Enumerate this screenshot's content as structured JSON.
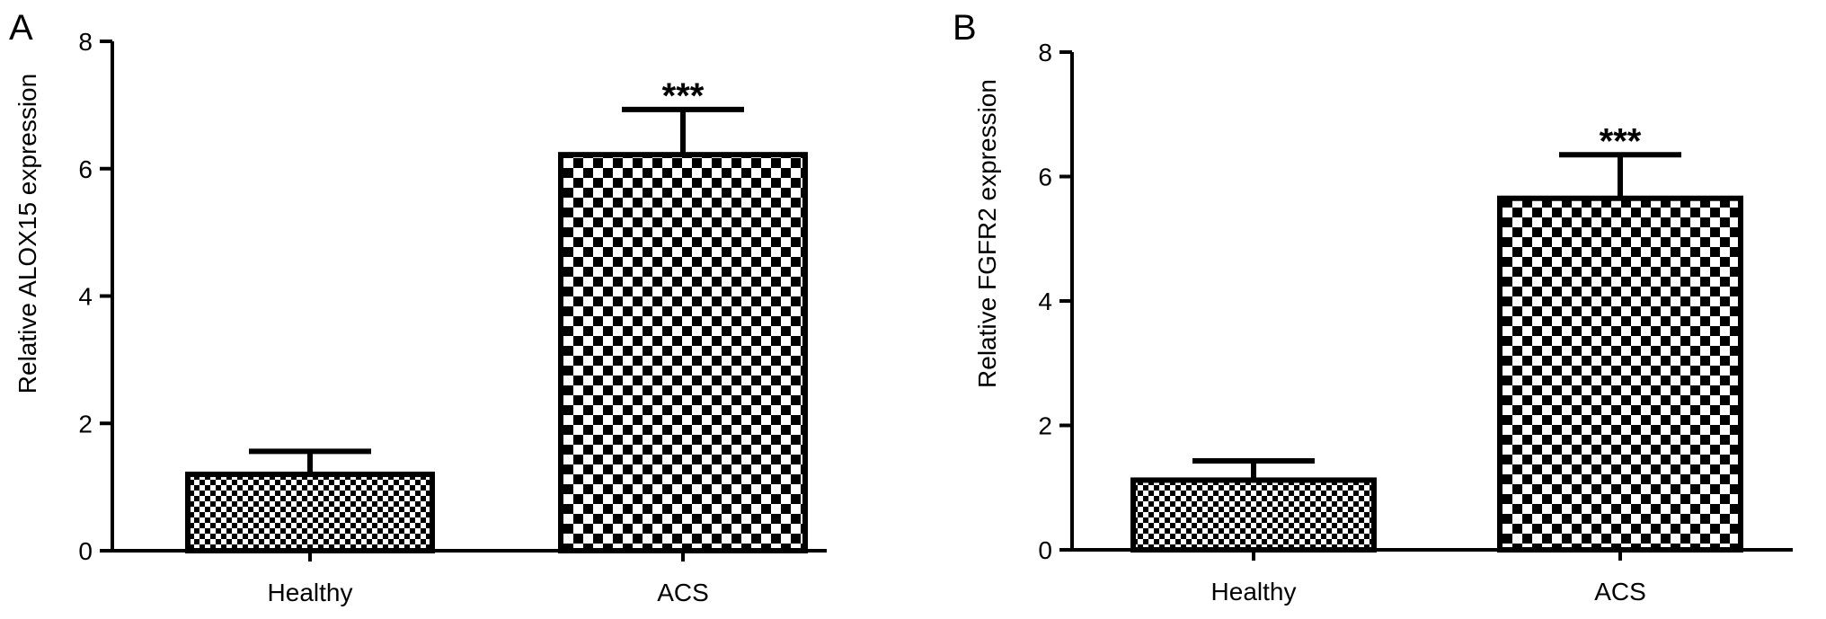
{
  "chart_data": [
    {
      "type": "bar",
      "panel_label": "A",
      "categories": [
        "Healthy",
        "ACS"
      ],
      "values": [
        1.2,
        6.22
      ],
      "error_upper": [
        1.56,
        6.93
      ],
      "significance": [
        "",
        "***"
      ],
      "xlabel": "",
      "ylabel": "Relative ALOX15 expression",
      "ylim": [
        0,
        8
      ],
      "yticks": [
        "0",
        "2",
        "4",
        "6",
        "8"
      ],
      "grid": false,
      "bar_fill": [
        "fine-checker",
        "coarse-checker"
      ],
      "colors": {
        "bar": "#000000",
        "background": "#ffffff"
      }
    },
    {
      "type": "bar",
      "panel_label": "B",
      "categories": [
        "Healthy",
        "ACS"
      ],
      "values": [
        1.12,
        5.65
      ],
      "error_upper": [
        1.43,
        6.35
      ],
      "significance": [
        "",
        "***"
      ],
      "xlabel": "",
      "ylabel": "Relative FGFR2 expression",
      "ylim": [
        0,
        8
      ],
      "yticks": [
        "0",
        "2",
        "4",
        "6",
        "8"
      ],
      "grid": false,
      "bar_fill": [
        "fine-checker",
        "coarse-checker"
      ],
      "colors": {
        "bar": "#000000",
        "background": "#ffffff"
      }
    }
  ]
}
